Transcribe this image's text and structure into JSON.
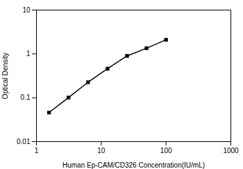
{
  "chart_data": {
    "type": "line",
    "x": [
      1.563,
      3.125,
      6.25,
      12.5,
      25,
      50,
      100
    ],
    "values": [
      0.046,
      0.101,
      0.226,
      0.46,
      0.9,
      1.35,
      2.1
    ],
    "xlabel": "Human Ep-CAM/CD326 Concentration(IU/mL)",
    "ylabel": "Optical Density",
    "xlim": [
      1,
      1000
    ],
    "ylim": [
      0.01,
      10
    ],
    "xticks": [
      1,
      10,
      100,
      1000
    ],
    "yticks": [
      0.01,
      0.1,
      1,
      10
    ],
    "log": true,
    "marker": "square"
  }
}
